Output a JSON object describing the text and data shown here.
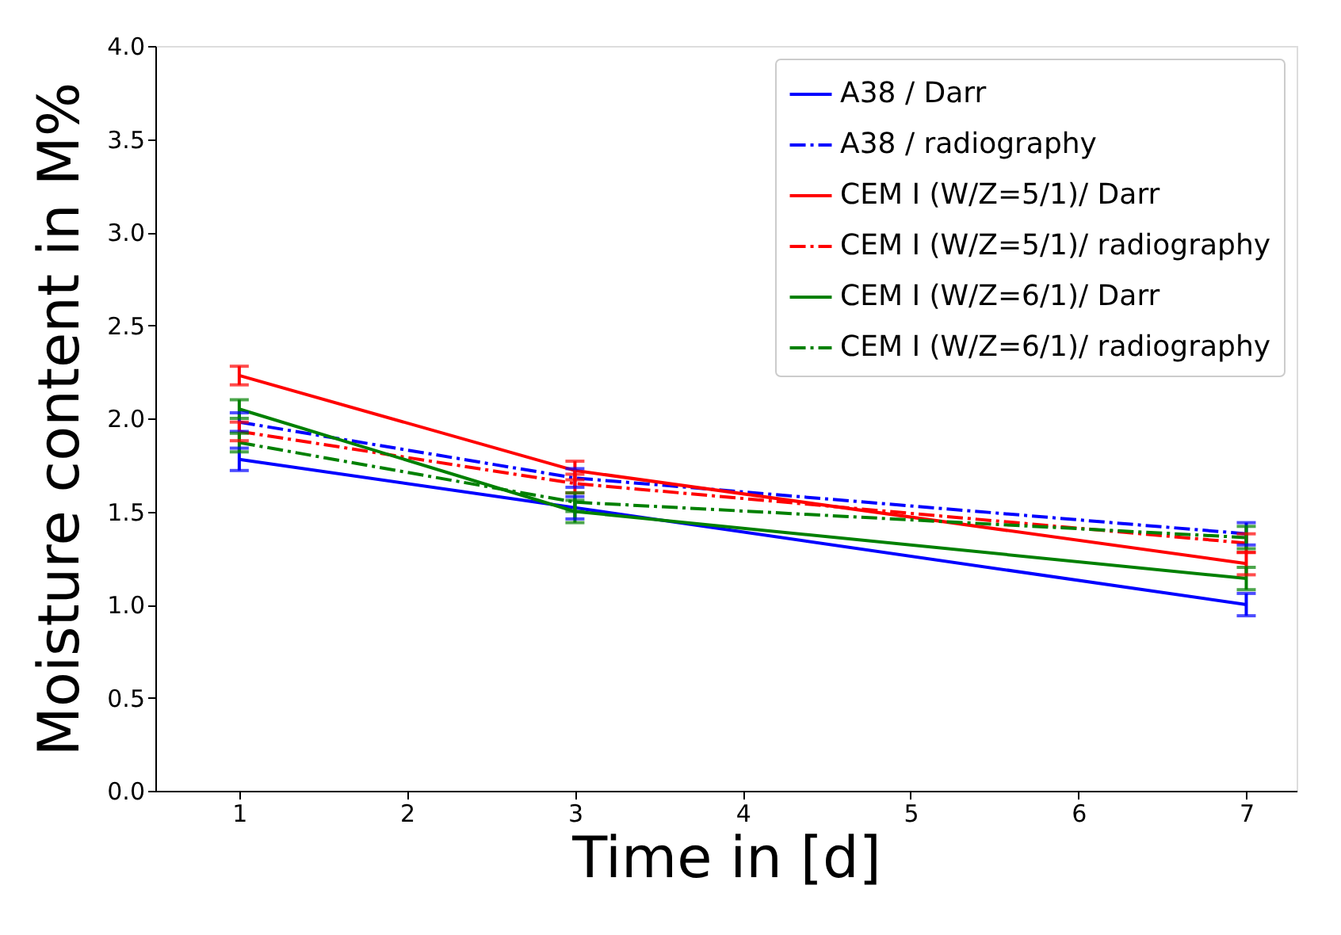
{
  "chart_data": {
    "type": "line",
    "xlabel": "Time in [d]",
    "ylabel": "Moisture content in M%",
    "x": [
      1,
      3,
      7
    ],
    "xlim": [
      0.5,
      7.3
    ],
    "xticks": [
      1,
      2,
      3,
      4,
      5,
      6,
      7
    ],
    "ylim": [
      0,
      4
    ],
    "yticks": [
      {
        "value": 0,
        "label": "0.0"
      },
      0.5,
      {
        "value": 1,
        "label": "1.0"
      },
      1.5,
      {
        "value": 2,
        "label": "2.0"
      },
      2.5,
      {
        "value": 3,
        "label": "3.0"
      },
      3.5,
      {
        "value": 4,
        "label": "4.0"
      }
    ],
    "grid": false,
    "legend": "top right",
    "marker": "none",
    "series": [
      {
        "name": "A38 / Darr",
        "color": "#0000ff",
        "line_style": "solid",
        "values": [
          1.78,
          1.52,
          1.0
        ],
        "errors": [
          0.06,
          0.06,
          0.06
        ]
      },
      {
        "name": "A38 / radiography",
        "color": "#0000ff",
        "line_style": "dashdot",
        "values": [
          1.98,
          1.68,
          1.38
        ],
        "errors": [
          0.05,
          0.05,
          0.06
        ]
      },
      {
        "name": "CEM I (W/Z=5/1)/ Darr",
        "color": "#ff0000",
        "line_style": "solid",
        "values": [
          2.23,
          1.72,
          1.22
        ],
        "errors": [
          0.05,
          0.05,
          0.06
        ]
      },
      {
        "name": "CEM I (W/Z=5/1)/ radiography",
        "color": "#ff0000",
        "line_style": "dashdot",
        "values": [
          1.93,
          1.65,
          1.33
        ],
        "errors": [
          0.05,
          0.05,
          0.05
        ]
      },
      {
        "name": "CEM I (W/Z=6/1)/ Darr",
        "color": "#008000",
        "line_style": "solid",
        "values": [
          2.05,
          1.5,
          1.14
        ],
        "errors": [
          0.05,
          0.06,
          0.06
        ]
      },
      {
        "name": "CEM I (W/Z=6/1)/ radiography",
        "color": "#008000",
        "line_style": "dashdot",
        "values": [
          1.87,
          1.55,
          1.36
        ],
        "errors": [
          0.05,
          0.05,
          0.06
        ]
      }
    ]
  }
}
